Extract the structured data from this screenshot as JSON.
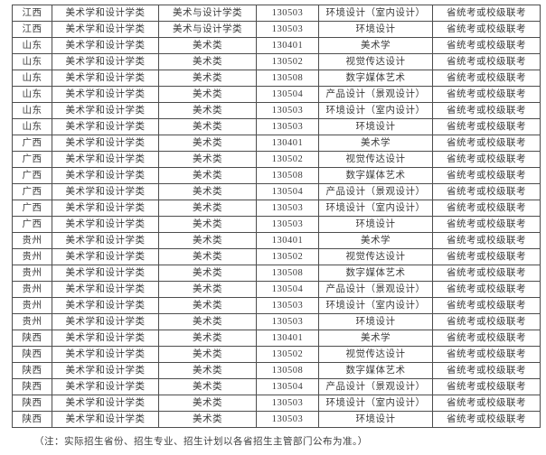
{
  "table": {
    "rows": [
      [
        "江西",
        "美术学和设计学类",
        "美术与设计学类",
        "130503",
        "环境设计（室内设计）",
        "省统考或校级联考"
      ],
      [
        "江西",
        "美术学和设计学类",
        "美术与设计学类",
        "130503",
        "环境设计",
        "省统考或校级联考"
      ],
      [
        "山东",
        "美术学和设计学类",
        "美术类",
        "130401",
        "美术学",
        "省统考或校级联考"
      ],
      [
        "山东",
        "美术学和设计学类",
        "美术类",
        "130502",
        "视觉传达设计",
        "省统考或校级联考"
      ],
      [
        "山东",
        "美术学和设计学类",
        "美术类",
        "130508",
        "数字媒体艺术",
        "省统考或校级联考"
      ],
      [
        "山东",
        "美术学和设计学类",
        "美术类",
        "130504",
        "产品设计（景观设计）",
        "省统考或校级联考"
      ],
      [
        "山东",
        "美术学和设计学类",
        "美术类",
        "130503",
        "环境设计（室内设计）",
        "省统考或校级联考"
      ],
      [
        "山东",
        "美术学和设计学类",
        "美术类",
        "130503",
        "环境设计",
        "省统考或校级联考"
      ],
      [
        "广西",
        "美术学和设计学类",
        "美术类",
        "130401",
        "美术学",
        "省统考或校级联考"
      ],
      [
        "广西",
        "美术学和设计学类",
        "美术类",
        "130502",
        "视觉传达设计",
        "省统考或校级联考"
      ],
      [
        "广西",
        "美术学和设计学类",
        "美术类",
        "130508",
        "数字媒体艺术",
        "省统考或校级联考"
      ],
      [
        "广西",
        "美术学和设计学类",
        "美术类",
        "130504",
        "产品设计（景观设计）",
        "省统考或校级联考"
      ],
      [
        "广西",
        "美术学和设计学类",
        "美术类",
        "130503",
        "环境设计（室内设计）",
        "省统考或校级联考"
      ],
      [
        "广西",
        "美术学和设计学类",
        "美术类",
        "130503",
        "环境设计",
        "省统考或校级联考"
      ],
      [
        "贵州",
        "美术学和设计学类",
        "美术类",
        "130401",
        "美术学",
        "省统考或校级联考"
      ],
      [
        "贵州",
        "美术学和设计学类",
        "美术类",
        "130502",
        "视觉传达设计",
        "省统考或校级联考"
      ],
      [
        "贵州",
        "美术学和设计学类",
        "美术类",
        "130508",
        "数字媒体艺术",
        "省统考或校级联考"
      ],
      [
        "贵州",
        "美术学和设计学类",
        "美术类",
        "130504",
        "产品设计（景观设计）",
        "省统考或校级联考"
      ],
      [
        "贵州",
        "美术学和设计学类",
        "美术类",
        "130503",
        "环境设计（室内设计）",
        "省统考或校级联考"
      ],
      [
        "贵州",
        "美术学和设计学类",
        "美术类",
        "130503",
        "环境设计",
        "省统考或校级联考"
      ],
      [
        "陕西",
        "美术学和设计学类",
        "美术类",
        "130401",
        "美术学",
        "省统考或校级联考"
      ],
      [
        "陕西",
        "美术学和设计学类",
        "美术类",
        "130502",
        "视觉传达设计",
        "省统考或校级联考"
      ],
      [
        "陕西",
        "美术学和设计学类",
        "美术类",
        "130508",
        "数字媒体艺术",
        "省统考或校级联考"
      ],
      [
        "陕西",
        "美术学和设计学类",
        "美术类",
        "130504",
        "产品设计（景观设计）",
        "省统考或校级联考"
      ],
      [
        "陕西",
        "美术学和设计学类",
        "美术类",
        "130503",
        "环境设计（室内设计）",
        "省统考或校级联考"
      ],
      [
        "陕西",
        "美术学和设计学类",
        "美术类",
        "130503",
        "环境设计",
        "省统考或校级联考"
      ]
    ]
  },
  "note": "（注：实际招生省份、招生专业、招生计划以各省招生主管部门公布为准。）",
  "colors": {
    "text": "#3b3b3b",
    "border": "#4d4d4d",
    "background": "#ffffff"
  }
}
